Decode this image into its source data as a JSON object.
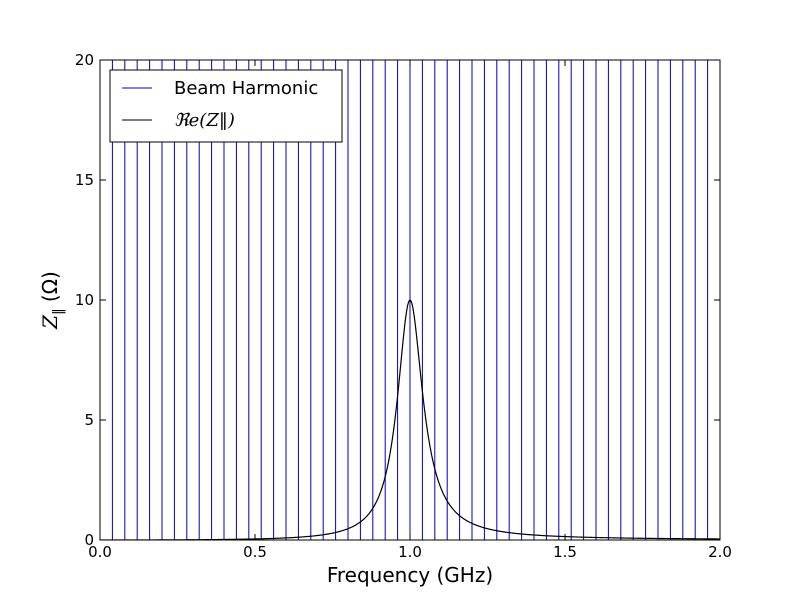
{
  "chart_data": {
    "type": "line",
    "xlabel": "Frequency (GHz)",
    "ylabel": "Z‖ (Ω)",
    "ylabel_main": "Z",
    "ylabel_sub": "‖",
    "ylabel_unit": "(Ω)",
    "xlim": [
      0.0,
      2.0
    ],
    "ylim": [
      0,
      20
    ],
    "x_ticks": [
      0.0,
      0.5,
      1.0,
      1.5,
      2.0
    ],
    "x_tick_labels": [
      "0.0",
      "0.5",
      "1.0",
      "1.5",
      "2.0"
    ],
    "y_ticks": [
      0,
      5,
      10,
      15,
      20
    ],
    "y_tick_labels": [
      "0",
      "5",
      "10",
      "15",
      "20"
    ],
    "grid": false,
    "legend_position": "upper-left",
    "series": [
      {
        "name": "Beam Harmonic",
        "style": "vertical-lines",
        "color": "#0000bb",
        "harmonic_spacing_ghz": 0.04,
        "first_harmonic_ghz": 0.04
      },
      {
        "name": "ℜe(Z‖)",
        "style": "line",
        "color": "#000000",
        "model": "resonator",
        "resonant_frequency_ghz": 1.0,
        "peak_value": 10,
        "quality_factor": 10
      }
    ]
  }
}
